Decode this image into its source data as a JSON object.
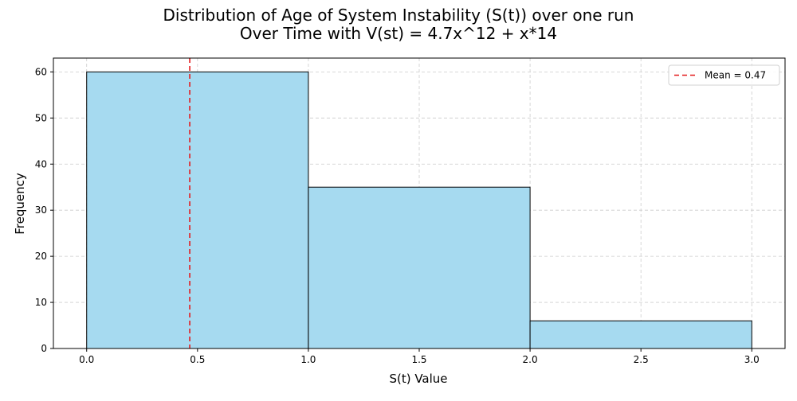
{
  "chart_data": {
    "type": "bar",
    "title_line1": "Distribution of Age of System Instability (S(t)) over one run",
    "title_line2": "Over Time with V(st) = 4.7x^12 + x*14",
    "xlabel": "S(t) Value",
    "ylabel": "Frequency",
    "bins": [
      {
        "start": 0,
        "end": 1,
        "value": 60
      },
      {
        "start": 1,
        "end": 2,
        "value": 35
      },
      {
        "start": 2,
        "end": 3,
        "value": 6
      }
    ],
    "xlim": [
      -0.15,
      3.15
    ],
    "ylim": [
      0,
      63
    ],
    "xticks": [
      "0.0",
      "0.5",
      "1.0",
      "1.5",
      "2.0",
      "2.5",
      "3.0"
    ],
    "xtick_values": [
      0,
      0.5,
      1,
      1.5,
      2,
      2.5,
      3
    ],
    "yticks": [
      "0",
      "10",
      "20",
      "30",
      "40",
      "50",
      "60"
    ],
    "ytick_values": [
      0,
      10,
      20,
      30,
      40,
      50,
      60
    ],
    "mean": {
      "value": 0.465,
      "label": "Mean = 0.47",
      "color": "#e31a1c"
    },
    "bar_color": "#a6daf0",
    "bar_edge_color": "#000000",
    "grid": true,
    "legend_position": "top-right"
  }
}
